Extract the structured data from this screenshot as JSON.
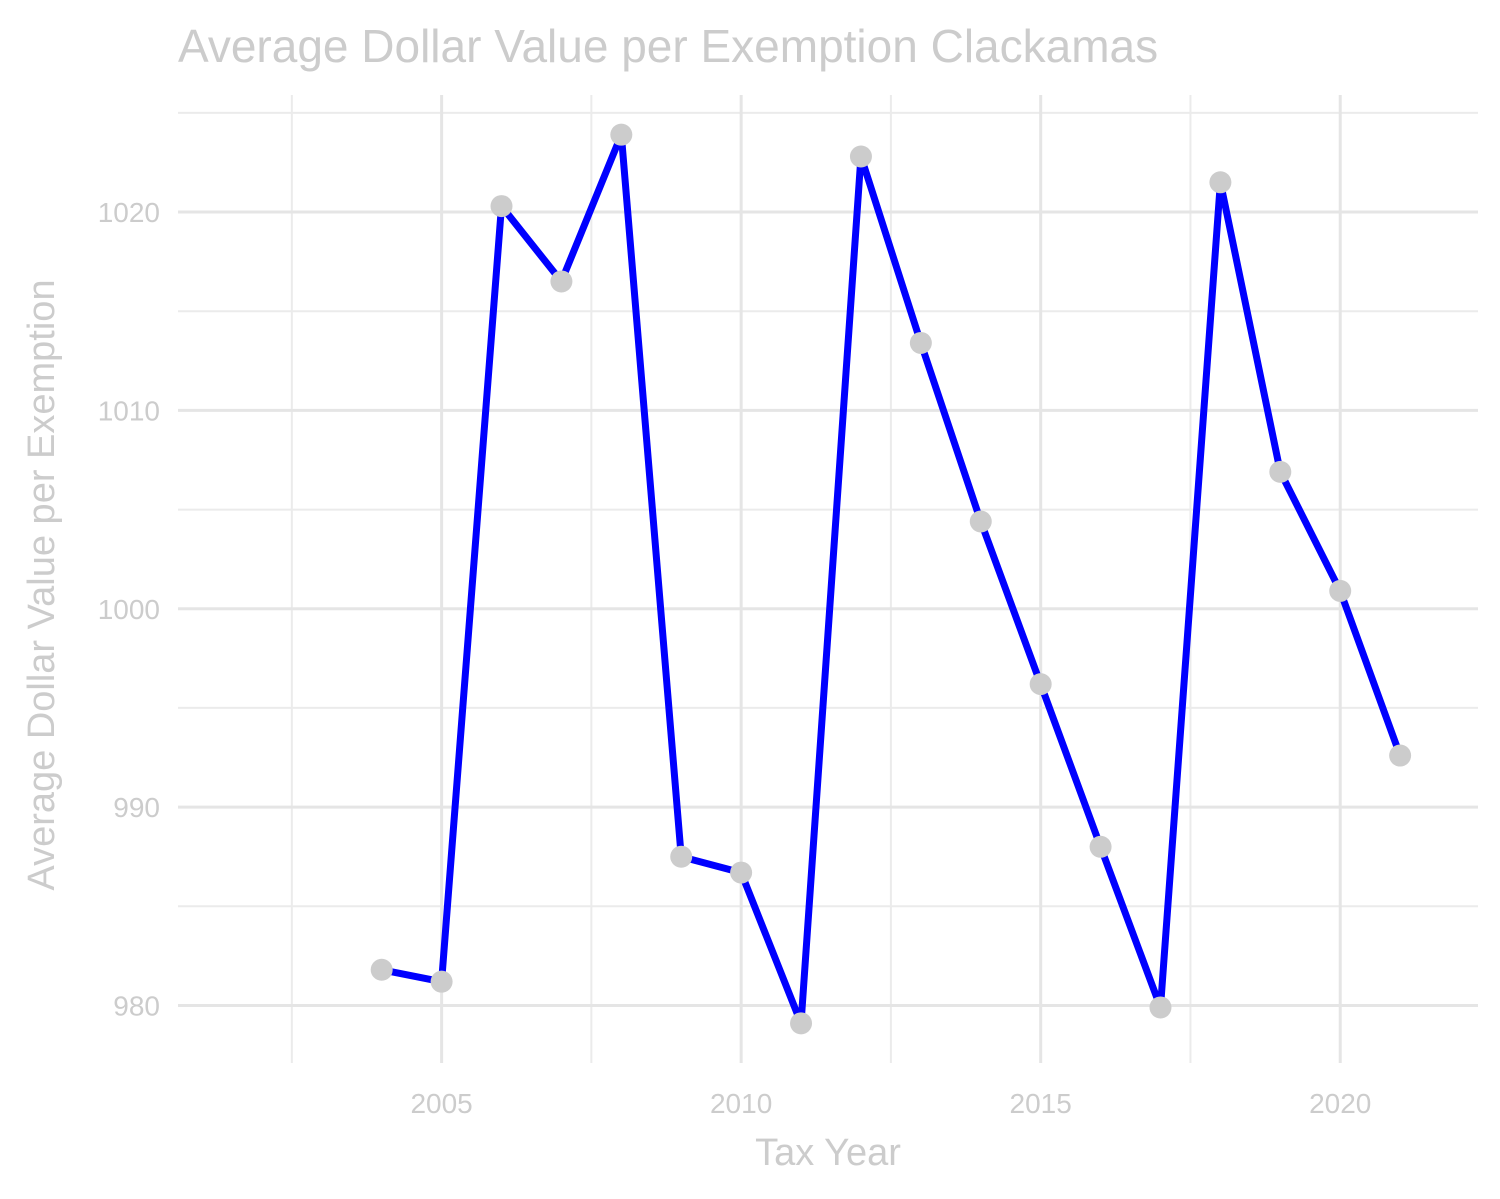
{
  "chart_data": {
    "type": "line",
    "title": "Average Dollar Value per Exemption Clackamas",
    "xlabel": "Tax Year",
    "ylabel": "Average Dollar Value per Exemption",
    "x": [
      2004,
      2005,
      2006,
      2007,
      2008,
      2009,
      2010,
      2011,
      2012,
      2013,
      2014,
      2015,
      2016,
      2017,
      2018,
      2019,
      2020,
      2021
    ],
    "series": [
      {
        "values": [
          981.8,
          981.2,
          1020.3,
          1016.5,
          1023.9,
          987.5,
          986.7,
          979.1,
          1022.8,
          1013.4,
          1004.4,
          996.2,
          988.0,
          979.9,
          1021.5,
          1006.9,
          1000.9,
          992.6
        ]
      }
    ],
    "xlim": [
      2000.6,
      2022.3
    ],
    "ylim": [
      977.1,
      1025.9
    ],
    "x_ticks": [
      2005,
      2010,
      2015,
      2020
    ],
    "x_tick_labels": [
      "2005",
      "2010",
      "2015",
      "2020"
    ],
    "y_ticks": [
      980,
      990,
      1000,
      1010,
      1020
    ],
    "y_tick_labels": [
      "980",
      "990",
      "1000",
      "1010",
      "1020"
    ],
    "grid": true,
    "legend": "none",
    "colors": {
      "line": "#0000ff",
      "points": "#cccccc",
      "text": "#cccccc",
      "grid": "#e5e5e5"
    }
  }
}
